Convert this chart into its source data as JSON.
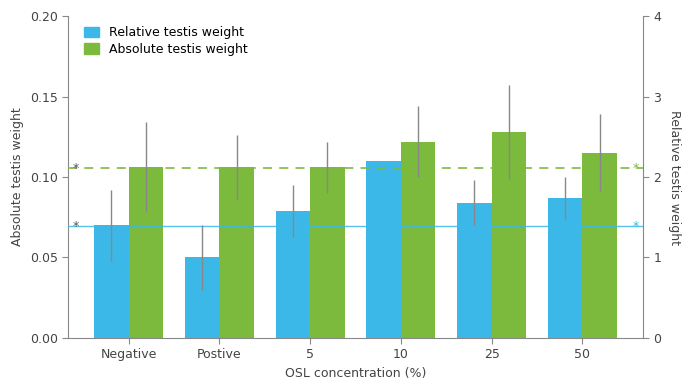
{
  "categories": [
    "Negative",
    "Postive",
    "5",
    "10",
    "25",
    "50"
  ],
  "blue_values": [
    0.07,
    0.05,
    0.079,
    0.11,
    0.084,
    0.087
  ],
  "green_values": [
    0.106,
    0.106,
    0.106,
    0.122,
    0.128,
    0.115
  ],
  "blue_errors_upper": [
    0.022,
    0.02,
    0.016,
    0.0,
    0.014,
    0.013
  ],
  "blue_errors_lower": [
    0.022,
    0.02,
    0.016,
    0.0,
    0.014,
    0.013
  ],
  "green_errors_upper": [
    0.028,
    0.02,
    0.016,
    0.022,
    0.029,
    0.024
  ],
  "green_errors_lower": [
    0.028,
    0.02,
    0.016,
    0.022,
    0.029,
    0.024
  ],
  "blue_color": "#3bb8e8",
  "green_color": "#7bba3c",
  "blue_ref_line": 0.0695,
  "green_ref_line": 0.1055,
  "xlabel": "OSL concentration (%)",
  "ylabel_left": "Absolute testis weight",
  "ylabel_right": "Relative testis weight",
  "ylim_left": [
    0,
    0.2
  ],
  "ylim_right": [
    0,
    4
  ],
  "yticks_left": [
    0,
    0.05,
    0.1,
    0.15,
    0.2
  ],
  "yticks_right": [
    0,
    1,
    2,
    3,
    4
  ],
  "legend_blue": "Relative testis weight",
  "legend_green": "Absolute testis weight",
  "bar_width": 0.38,
  "figsize": [
    6.92,
    3.91
  ],
  "dpi": 100
}
